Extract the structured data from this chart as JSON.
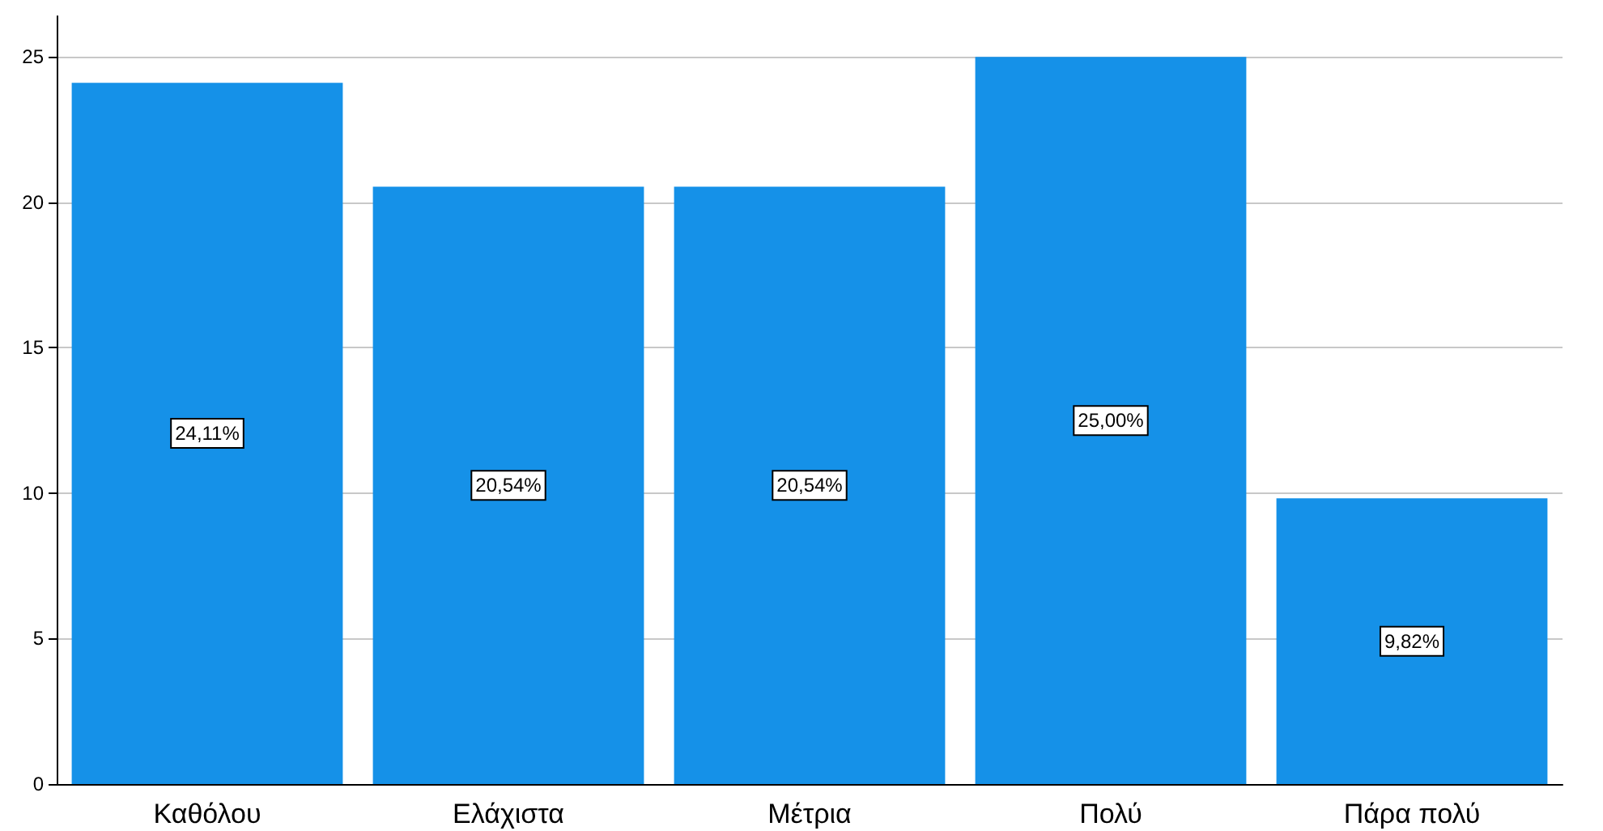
{
  "chart_data": {
    "type": "bar",
    "categories": [
      "Καθόλου",
      "Ελάχιστα",
      "Μέτρια",
      "Πολύ",
      "Πάρα πολύ"
    ],
    "values": [
      24.11,
      20.54,
      20.54,
      25.0,
      9.82
    ],
    "value_labels": [
      "24,11%",
      "20,54%",
      "20,54%",
      "25,00%",
      "9,82%"
    ],
    "color": "#1591e8",
    "ylim": [
      0,
      26.4
    ],
    "yticks": [
      0,
      5,
      10,
      15,
      20,
      25
    ],
    "grid": "y"
  }
}
